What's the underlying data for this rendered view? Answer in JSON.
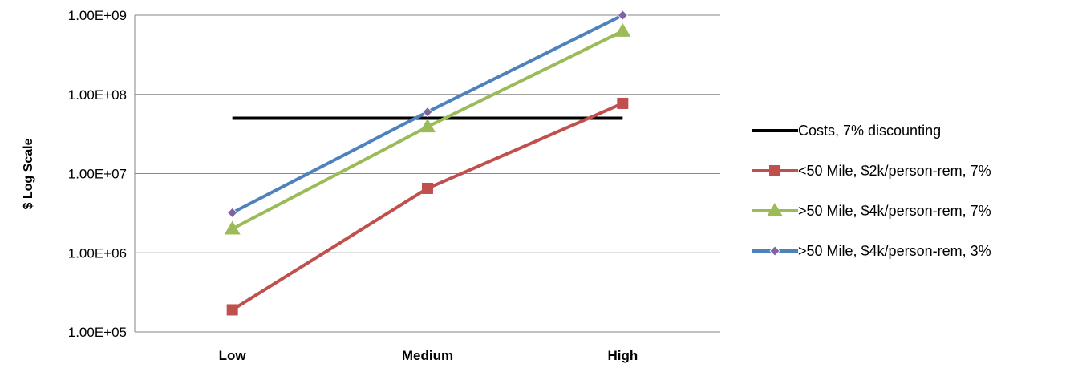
{
  "chart_data": {
    "type": "line",
    "ylabel": "$ Log Scale",
    "xlabel": "",
    "yscale": "log",
    "ylim": [
      100000,
      1000000000
    ],
    "yticks": [
      {
        "value": 100000,
        "label": "1.00E+05"
      },
      {
        "value": 1000000,
        "label": "1.00E+06"
      },
      {
        "value": 10000000,
        "label": "1.00E+07"
      },
      {
        "value": 100000000,
        "label": "1.00E+08"
      },
      {
        "value": 1000000000,
        "label": "1.00E+09"
      }
    ],
    "categories": [
      "Low",
      "Medium",
      "High"
    ],
    "grid": "horizontal",
    "legend_position": "right",
    "series": [
      {
        "name": "Costs, 7% discounting",
        "values": [
          50000000,
          50000000,
          50000000
        ],
        "color": "#000000",
        "marker": "none"
      },
      {
        "name": "<50 Mile, $2k/person-rem, 7%",
        "values": [
          190000,
          6500000,
          77000000
        ],
        "color": "#C0504D",
        "marker": "square"
      },
      {
        "name": ">50 Mile, $4k/person-rem, 7%",
        "values": [
          2000000,
          39000000,
          630000000
        ],
        "color": "#9BBB59",
        "marker": "triangle"
      },
      {
        "name": ">50 Mile, $4k/person-rem, 3%",
        "values": [
          3200000,
          60000000,
          1000000000
        ],
        "color": "#4F81BD",
        "marker": "diamond"
      }
    ]
  }
}
